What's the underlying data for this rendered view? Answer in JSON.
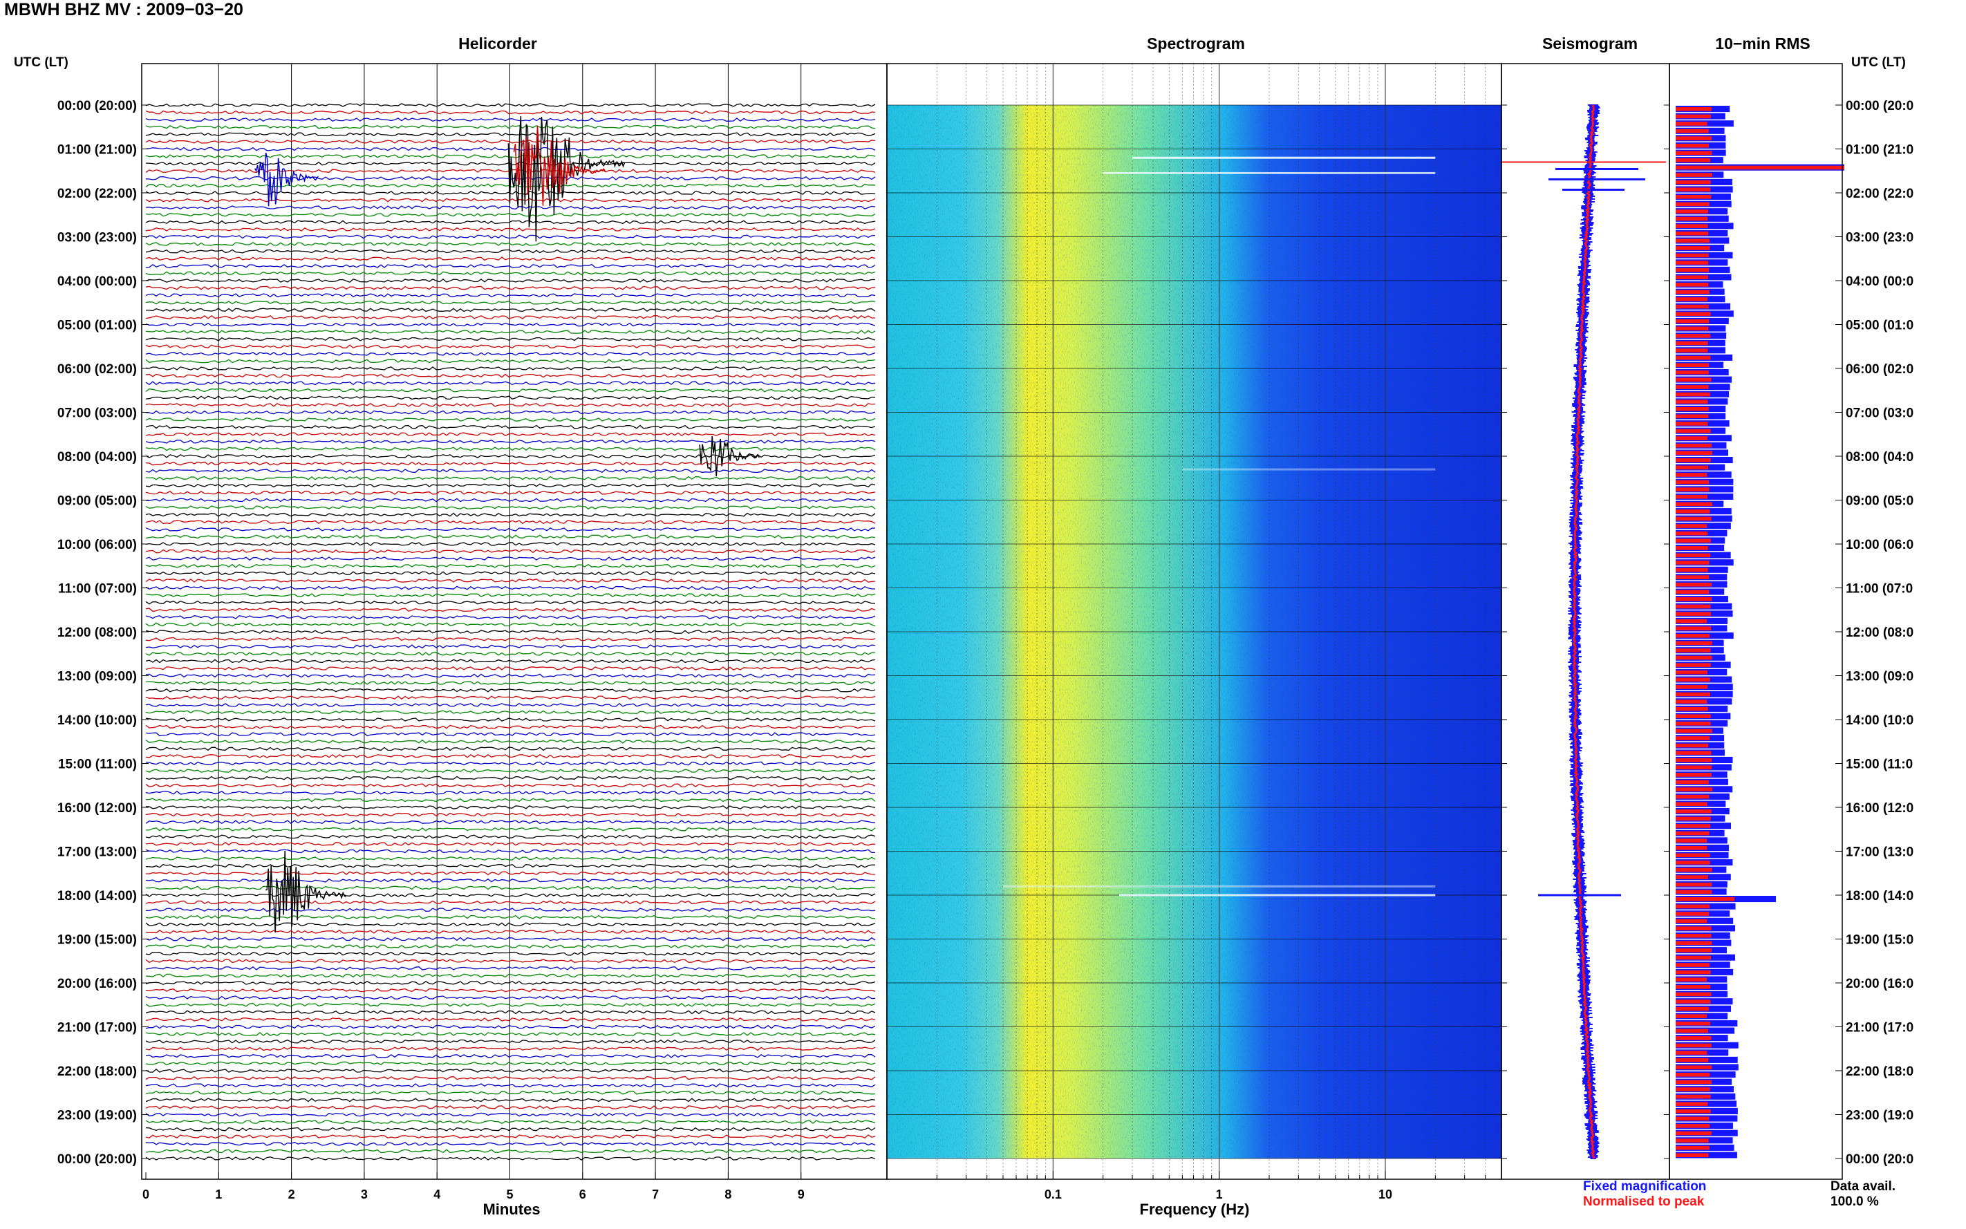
{
  "title": "MBWH BHZ MV : 2009−03−20",
  "panels": {
    "helicorder": "Helicorder",
    "spectrogram": "Spectrogram",
    "seismogram": "Seismogram",
    "rms": "10−min RMS"
  },
  "utc_header": "UTC (LT)",
  "colors": {
    "trace_cycle": [
      "#000000",
      "#cc0000",
      "#0000cc",
      "#008800"
    ],
    "fixed": "#1515ff",
    "normalised": "#ff1515"
  },
  "legend": {
    "fixed": "Fixed magnification",
    "normalised": "Normalised to peak"
  },
  "availability": {
    "label": "Data avail.",
    "value": "100.0 %"
  },
  "chart_data": [
    {
      "type": "line",
      "name": "Helicorder",
      "xlabel": "Minutes",
      "x_ticks": [
        "0",
        "1",
        "2",
        "3",
        "4",
        "5",
        "6",
        "7",
        "8",
        "9"
      ],
      "xlim": [
        0,
        10
      ],
      "rows_per_hour": 6,
      "hours": 24,
      "row_labels_left": [
        "00:00 (20:00)",
        "01:00 (21:00)",
        "02:00 (22:00)",
        "03:00 (23:00)",
        "04:00 (00:00)",
        "05:00 (01:00)",
        "06:00 (02:00)",
        "07:00 (03:00)",
        "08:00 (04:00)",
        "09:00 (05:00)",
        "10:00 (06:00)",
        "11:00 (07:00)",
        "12:00 (08:00)",
        "13:00 (09:00)",
        "14:00 (10:00)",
        "15:00 (11:00)",
        "16:00 (12:00)",
        "17:00 (13:00)",
        "18:00 (14:00)",
        "19:00 (15:00)",
        "20:00 (16:00)",
        "21:00 (17:00)",
        "22:00 (18:00)",
        "23:00 (19:00)",
        "00:00 (20:00)"
      ],
      "row_labels_right": [
        "00:00 (20:0",
        "01:00 (21:0",
        "02:00 (22:0",
        "03:00 (23:0",
        "04:00 (00:0",
        "05:00 (01:0",
        "06:00 (02:0",
        "07:00 (03:0",
        "08:00 (04:0",
        "09:00 (05:0",
        "10:00 (06:0",
        "11:00 (07:0",
        "12:00 (08:0",
        "13:00 (09:0",
        "14:00 (10:0",
        "15:00 (11:0",
        "16:00 (12:0",
        "17:00 (13:0",
        "18:00 (14:0",
        "19:00 (15:0",
        "20:00 (16:0",
        "21:00 (17:0",
        "22:00 (18:0",
        "23:00 (19:0",
        "00:00 (20:0"
      ],
      "events": [
        {
          "hour": 1,
          "row": 2,
          "minute": 5.35,
          "amplitude": 1.0
        },
        {
          "hour": 1,
          "row": 3,
          "minute": 5.35,
          "amplitude": 0.7
        },
        {
          "hour": 1,
          "row": 4,
          "minute": 1.7,
          "amplitude": 0.35
        },
        {
          "hour": 8,
          "row": 0,
          "minute": 7.8,
          "amplitude": 0.3
        },
        {
          "hour": 18,
          "row": 0,
          "minute": 1.9,
          "amplitude": 0.55
        }
      ]
    },
    {
      "type": "heatmap",
      "name": "Spectrogram",
      "xlabel": "Frequency (Hz)",
      "x_scale": "log",
      "x_ticks": [
        "0.1",
        "1",
        "10"
      ],
      "xlim": [
        0.01,
        50
      ],
      "peak_band_hz": [
        0.12,
        0.3
      ],
      "high_freq_cutoff_hz": 3
    },
    {
      "type": "line",
      "name": "Seismogram",
      "series": [
        {
          "name": "Fixed magnification",
          "color": "#1515ff"
        },
        {
          "name": "Normalised to peak",
          "color": "#ff1515"
        }
      ],
      "spike_hours": [
        1.3,
        18.0
      ]
    },
    {
      "type": "bar",
      "name": "10-min RMS",
      "spike_hours": [
        1.3,
        18.0
      ]
    }
  ]
}
